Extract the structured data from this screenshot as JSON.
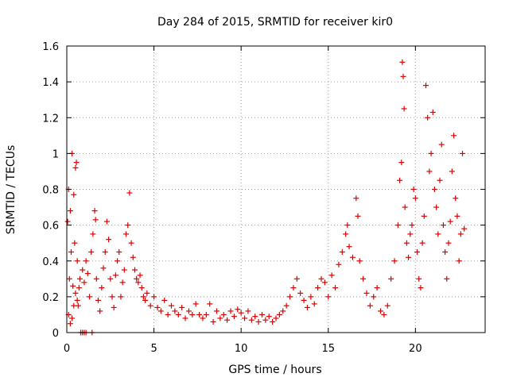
{
  "chart_data": {
    "type": "scatter",
    "title": "Day 284 of 2015, SRMTID for receiver kir0",
    "xlabel": "GPS time / hours",
    "ylabel": "SRMTID / TECUs",
    "xlim": [
      0,
      24
    ],
    "ylim": [
      0,
      1.6
    ],
    "xticks": [
      0,
      5,
      10,
      15,
      20
    ],
    "yticks": [
      0,
      0.2,
      0.4,
      0.6,
      0.8,
      1,
      1.2,
      1.4,
      1.6
    ],
    "xtick_labels": [
      "0",
      "5",
      "10",
      "15",
      "20"
    ],
    "ytick_labels": [
      "0",
      "0.2",
      "0.4",
      "0.6",
      "0.8",
      "1",
      "1.2",
      "1.4",
      "1.6"
    ],
    "grid": true,
    "marker": "+",
    "series": [
      {
        "name": "kir0",
        "color": "#e00000",
        "points": [
          [
            0.05,
            0.62
          ],
          [
            0.1,
            0.8
          ],
          [
            0.15,
            0.3
          ],
          [
            0.2,
            0.68
          ],
          [
            0.25,
            0.45
          ],
          [
            0.3,
            1.0
          ],
          [
            0.35,
            0.26
          ],
          [
            0.4,
            0.77
          ],
          [
            0.45,
            0.5
          ],
          [
            0.5,
            0.92
          ],
          [
            0.55,
            0.95
          ],
          [
            0.6,
            0.4
          ],
          [
            0.65,
            0.15
          ],
          [
            0.7,
            0.25
          ],
          [
            0.75,
            0.3
          ],
          [
            0.1,
            0.1
          ],
          [
            0.2,
            0.05
          ],
          [
            0.3,
            0.08
          ],
          [
            0.4,
            0.15
          ],
          [
            0.5,
            0.22
          ],
          [
            0.6,
            0.18
          ],
          [
            0.8,
            0.0
          ],
          [
            0.9,
            0.0
          ],
          [
            1.0,
            0.0
          ],
          [
            1.1,
            0.0
          ],
          [
            1.45,
            0.0
          ],
          [
            0.9,
            0.35
          ],
          [
            1.0,
            0.28
          ],
          [
            1.1,
            0.4
          ],
          [
            1.2,
            0.33
          ],
          [
            1.3,
            0.2
          ],
          [
            1.4,
            0.45
          ],
          [
            1.5,
            0.55
          ],
          [
            1.6,
            0.68
          ],
          [
            1.65,
            0.63
          ],
          [
            1.7,
            0.3
          ],
          [
            1.8,
            0.18
          ],
          [
            1.9,
            0.12
          ],
          [
            2.0,
            0.25
          ],
          [
            2.1,
            0.36
          ],
          [
            2.2,
            0.45
          ],
          [
            2.3,
            0.62
          ],
          [
            2.4,
            0.52
          ],
          [
            2.5,
            0.3
          ],
          [
            2.6,
            0.2
          ],
          [
            2.7,
            0.14
          ],
          [
            2.8,
            0.32
          ],
          [
            2.9,
            0.4
          ],
          [
            3.0,
            0.45
          ],
          [
            3.1,
            0.2
          ],
          [
            3.2,
            0.28
          ],
          [
            3.3,
            0.35
          ],
          [
            3.4,
            0.55
          ],
          [
            3.5,
            0.6
          ],
          [
            3.6,
            0.78
          ],
          [
            3.7,
            0.5
          ],
          [
            3.8,
            0.42
          ],
          [
            3.9,
            0.35
          ],
          [
            4.0,
            0.3
          ],
          [
            4.1,
            0.28
          ],
          [
            4.2,
            0.32
          ],
          [
            4.3,
            0.25
          ],
          [
            4.4,
            0.2
          ],
          [
            4.5,
            0.18
          ],
          [
            4.6,
            0.22
          ],
          [
            4.8,
            0.15
          ],
          [
            5.0,
            0.2
          ],
          [
            5.2,
            0.14
          ],
          [
            5.4,
            0.12
          ],
          [
            5.6,
            0.18
          ],
          [
            5.8,
            0.1
          ],
          [
            6.0,
            0.15
          ],
          [
            6.2,
            0.12
          ],
          [
            6.4,
            0.1
          ],
          [
            6.6,
            0.14
          ],
          [
            6.8,
            0.08
          ],
          [
            7.0,
            0.12
          ],
          [
            7.2,
            0.1
          ],
          [
            7.4,
            0.16
          ],
          [
            7.6,
            0.1
          ],
          [
            7.8,
            0.08
          ],
          [
            8.0,
            0.1
          ],
          [
            8.2,
            0.16
          ],
          [
            8.4,
            0.06
          ],
          [
            8.6,
            0.12
          ],
          [
            8.8,
            0.08
          ],
          [
            9.0,
            0.1
          ],
          [
            9.2,
            0.07
          ],
          [
            9.4,
            0.12
          ],
          [
            9.6,
            0.09
          ],
          [
            9.8,
            0.13
          ],
          [
            10.0,
            0.11
          ],
          [
            10.2,
            0.08
          ],
          [
            10.4,
            0.12
          ],
          [
            10.6,
            0.07
          ],
          [
            10.8,
            0.09
          ],
          [
            11.0,
            0.06
          ],
          [
            11.2,
            0.1
          ],
          [
            11.4,
            0.07
          ],
          [
            11.6,
            0.09
          ],
          [
            11.8,
            0.06
          ],
          [
            12.0,
            0.08
          ],
          [
            12.2,
            0.1
          ],
          [
            12.4,
            0.12
          ],
          [
            12.6,
            0.15
          ],
          [
            12.8,
            0.2
          ],
          [
            13.0,
            0.25
          ],
          [
            13.2,
            0.3
          ],
          [
            13.4,
            0.22
          ],
          [
            13.6,
            0.18
          ],
          [
            13.8,
            0.14
          ],
          [
            14.0,
            0.2
          ],
          [
            14.2,
            0.16
          ],
          [
            14.4,
            0.25
          ],
          [
            14.6,
            0.3
          ],
          [
            14.8,
            0.28
          ],
          [
            15.0,
            0.2
          ],
          [
            15.2,
            0.32
          ],
          [
            15.4,
            0.25
          ],
          [
            15.6,
            0.38
          ],
          [
            15.8,
            0.45
          ],
          [
            16.0,
            0.55
          ],
          [
            16.1,
            0.6
          ],
          [
            16.2,
            0.48
          ],
          [
            16.4,
            0.42
          ],
          [
            16.6,
            0.75
          ],
          [
            16.7,
            0.65
          ],
          [
            16.8,
            0.4
          ],
          [
            17.0,
            0.3
          ],
          [
            17.2,
            0.22
          ],
          [
            17.4,
            0.15
          ],
          [
            17.6,
            0.2
          ],
          [
            17.8,
            0.25
          ],
          [
            18.0,
            0.12
          ],
          [
            18.2,
            0.1
          ],
          [
            18.4,
            0.15
          ],
          [
            18.6,
            0.3
          ],
          [
            18.8,
            0.4
          ],
          [
            19.0,
            0.6
          ],
          [
            19.1,
            0.85
          ],
          [
            19.2,
            0.95
          ],
          [
            19.25,
            1.51
          ],
          [
            19.3,
            1.43
          ],
          [
            19.35,
            1.25
          ],
          [
            19.4,
            0.7
          ],
          [
            19.5,
            0.5
          ],
          [
            19.6,
            0.42
          ],
          [
            19.7,
            0.55
          ],
          [
            19.8,
            0.6
          ],
          [
            19.9,
            0.8
          ],
          [
            20.0,
            0.75
          ],
          [
            20.1,
            0.45
          ],
          [
            20.2,
            0.3
          ],
          [
            20.3,
            0.25
          ],
          [
            20.4,
            0.5
          ],
          [
            20.5,
            0.65
          ],
          [
            20.6,
            1.38
          ],
          [
            20.7,
            1.2
          ],
          [
            20.8,
            0.9
          ],
          [
            20.9,
            1.0
          ],
          [
            21.0,
            1.23
          ],
          [
            21.1,
            0.8
          ],
          [
            21.2,
            0.7
          ],
          [
            21.3,
            0.55
          ],
          [
            21.4,
            0.85
          ],
          [
            21.5,
            1.05
          ],
          [
            21.6,
            0.6
          ],
          [
            21.7,
            0.45
          ],
          [
            21.8,
            0.3
          ],
          [
            21.9,
            0.5
          ],
          [
            22.0,
            0.62
          ],
          [
            22.1,
            0.9
          ],
          [
            22.2,
            1.1
          ],
          [
            22.3,
            0.75
          ],
          [
            22.4,
            0.65
          ],
          [
            22.5,
            0.4
          ],
          [
            22.6,
            0.55
          ],
          [
            22.7,
            1.0
          ],
          [
            22.8,
            0.58
          ]
        ]
      }
    ]
  }
}
